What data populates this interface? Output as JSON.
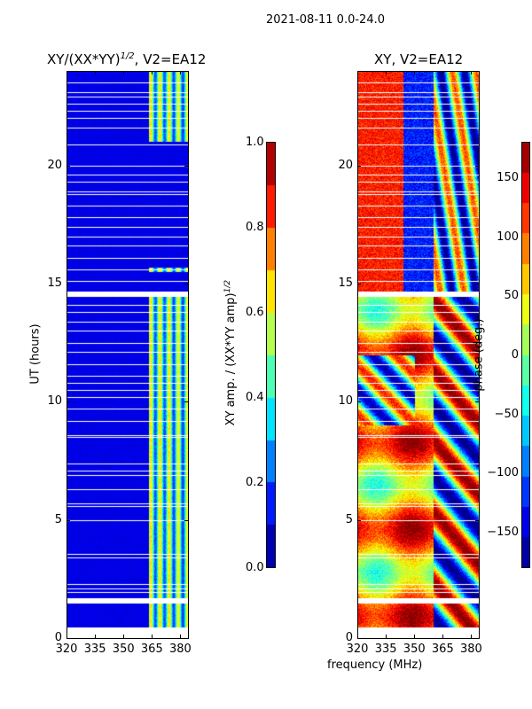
{
  "suptitle": "2021-08-11 0.0-24.0",
  "chart_data": [
    {
      "type": "heatmap",
      "title": "XY/(XX*YY)^1/2, V2=EA12",
      "title_main": "XY/(XX*YY)",
      "title_sup": "1/2",
      "title_rest": ", V2=EA12",
      "xlabel": "",
      "ylabel": "UT (hours)",
      "xlim": [
        320,
        384
      ],
      "ylim": [
        0,
        24
      ],
      "xticks": [
        "320",
        "335",
        "350",
        "365",
        "380"
      ],
      "xtick_values": [
        320,
        335,
        350,
        365,
        380
      ],
      "yticks": [
        "0",
        "5",
        "10",
        "15",
        "20"
      ],
      "ytick_values": [
        0,
        5,
        10,
        15,
        20
      ],
      "colormap": "jet",
      "colorbar": {
        "label_main": "XY amp. / (XX*YY amp)",
        "label_sup": "1/2",
        "range": [
          0.0,
          1.0
        ],
        "ticks": [
          "0.0",
          "0.2",
          "0.4",
          "0.6",
          "0.8",
          "1.0"
        ],
        "tick_values": [
          0,
          0.2,
          0.4,
          0.6,
          0.8,
          1.0
        ]
      },
      "description_values": {
        "background_amp": 0.1,
        "high_amp_band_mhz": [
          363,
          384
        ],
        "high_amp_value": 0.5
      }
    },
    {
      "type": "heatmap",
      "title": "XY, V2=EA12",
      "xlabel": "frequency (MHz)",
      "ylabel": "",
      "xlim": [
        320,
        384
      ],
      "ylim": [
        0,
        24
      ],
      "xticks": [
        "320",
        "335",
        "350",
        "365",
        "380"
      ],
      "xtick_values": [
        320,
        335,
        350,
        365,
        380
      ],
      "yticks": [
        "0",
        "5",
        "10",
        "15",
        "20"
      ],
      "ytick_values": [
        0,
        5,
        10,
        15,
        20
      ],
      "colormap": "jet",
      "colorbar": {
        "label": "phase (deg.)",
        "range": [
          -180,
          180
        ],
        "ticks": [
          "−150",
          "−100",
          "−50",
          "0",
          "50",
          "100",
          "150"
        ],
        "tick_values": [
          -150,
          -100,
          -50,
          0,
          50,
          100,
          150
        ]
      }
    }
  ],
  "flagged_hours": [
    0.45,
    1.55,
    1.6,
    1.95,
    2.1,
    2.3,
    3.4,
    3.55,
    5.0,
    5.6,
    5.7,
    6.3,
    6.9,
    7.1,
    7.4,
    8.5,
    8.6,
    9.2,
    9.7,
    10.2,
    10.5,
    10.8,
    11.1,
    11.6,
    12.1,
    12.5,
    13.0,
    13.4,
    13.8,
    14.1,
    14.5,
    14.6,
    15.1,
    15.6,
    16.1,
    16.6,
    17.0,
    17.4,
    17.8,
    18.3,
    18.8,
    18.9,
    19.3,
    19.6,
    20.0,
    20.9,
    21.6,
    22.0,
    22.3,
    22.6,
    22.9,
    23.1,
    23.5
  ]
}
